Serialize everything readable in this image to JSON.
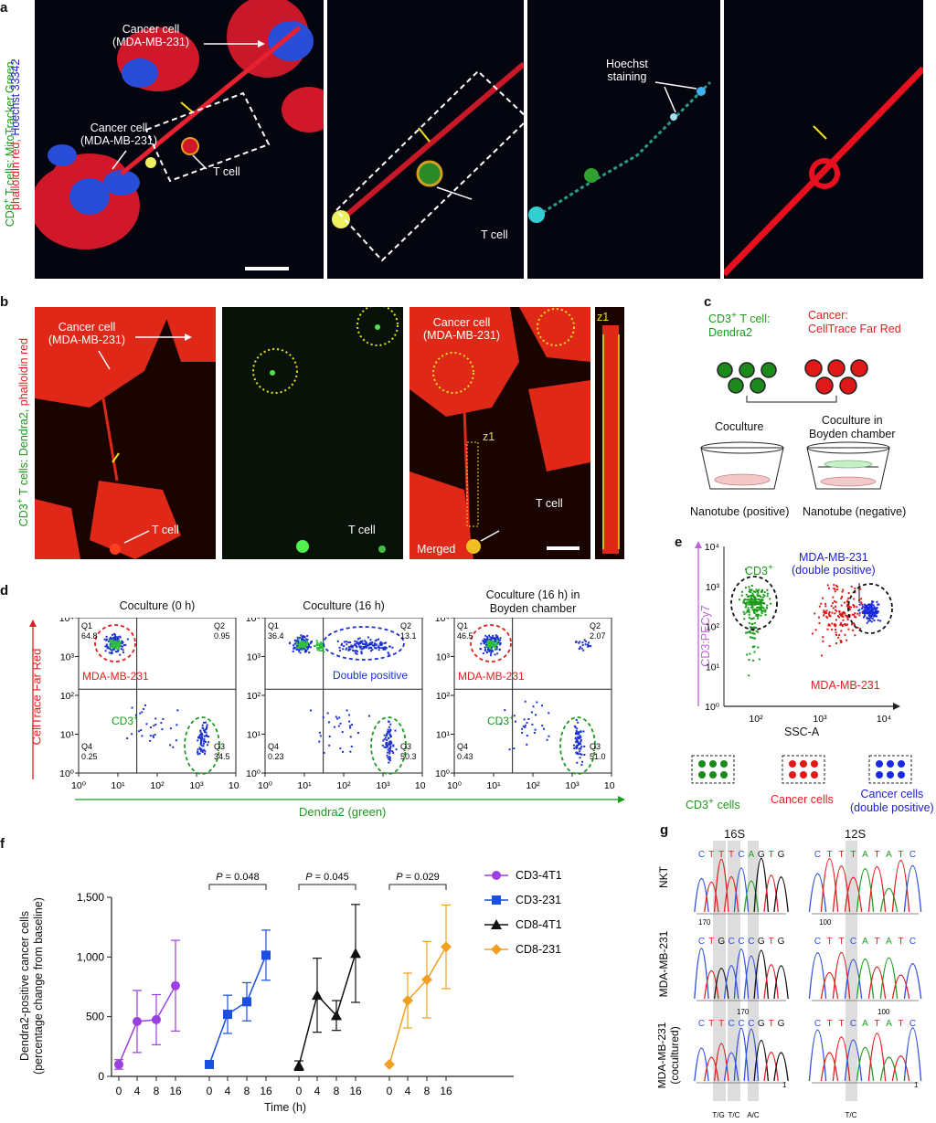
{
  "panel_labels": {
    "a": "a",
    "b": "b",
    "c": "c",
    "d": "d",
    "e": "e",
    "f": "f",
    "g": "g"
  },
  "panel_a": {
    "ylabel_green": "CD8",
    "ylabel_sup": "+",
    "ylabel_green2": " T cells: MitoTracker Green,",
    "ylabel_red": "phalloidin red,",
    "ylabel_blue": "Hoechst 33342",
    "cancer_cell_1": "Cancer cell",
    "cancer_cell_1b": "(MDA-MB-231)",
    "cancer_cell_2": "Cancer cell",
    "cancer_cell_2b": "(MDA-MB-231)",
    "t_cell_1": "T cell",
    "t_cell_2": "T cell",
    "hoechst_1": "Hoechst",
    "hoechst_2": "staining"
  },
  "panel_b": {
    "ylabel_green": "CD3",
    "ylabel_sup": "+",
    "ylabel_green2": " T cells: Dendra2,",
    "ylabel_red": " phalloidin red",
    "cancer_1": "Cancer cell",
    "cancer_1b": "(MDA-MB-231)",
    "t_cell_1": "T cell",
    "t_cell_2": "T cell",
    "cancer_3": "Cancer cell",
    "cancer_3b": "(MDA-MB-231)",
    "z1_a": "z1",
    "t_cell_3": "T cell",
    "merged": "Merged",
    "z1_b": "z1"
  },
  "panel_c": {
    "tcell_title": "CD3",
    "tcell_sup": "+",
    "tcell_title2": " T cell:",
    "tcell_sub": "Dendra2",
    "cancer_title": "Cancer:",
    "cancer_sub": "CellTrace Far Red",
    "coculture": "Coculture",
    "boyden_1": "Coculture in",
    "boyden_2": "Boyden chamber",
    "nano_pos": "Nanotube (positive)",
    "nano_neg": "Nanotube (negative)"
  },
  "panel_d": {
    "titles": [
      "Coculture (0 h)",
      "Coculture (16 h)",
      "Coculture (16 h) in"
    ],
    "title3b": "Boyden chamber",
    "ylabel": "CellTrace Far Red",
    "xlabel": "Dendra2 (green)",
    "xticks": [
      "10⁰",
      "10¹",
      "10²",
      "10³",
      "10⁴"
    ],
    "yticks": [
      "10⁰",
      "10¹",
      "10²",
      "10³",
      "10⁴"
    ],
    "quadrants": [
      {
        "q1": "Q1",
        "q1v": "64.8",
        "q2": "Q2",
        "q2v": "0.95",
        "q3": "Q3",
        "q3v": "34.5",
        "q4": "Q4",
        "q4v": "0.25"
      },
      {
        "q1": "Q1",
        "q1v": "36.4",
        "q2": "Q2",
        "q2v": "13.1",
        "q3": "Q3",
        "q3v": "50.3",
        "q4": "Q4",
        "q4v": "0.23"
      },
      {
        "q1": "Q1",
        "q1v": "46.5",
        "q2": "Q2",
        "q2v": "2.07",
        "q3": "Q3",
        "q3v": "51.0",
        "q4": "Q4",
        "q4v": "0.43"
      }
    ],
    "mda_label": "MDA-MB-231",
    "cd3_label": "CD3",
    "cd3_sup": "+",
    "double_positive": "Double positive"
  },
  "panel_e": {
    "ylabel": "CD3:PECy7",
    "xlabel": "SSC-A",
    "cd3_label": "CD3",
    "cd3_sup": "+",
    "mda_label_1": "MDA-MB-231",
    "mda_label_2": "(double positive)",
    "mda_red": "MDA-MB-231",
    "legend_cd3": "CD3",
    "legend_cd3_sup": "+",
    "legend_cd3_b": " cells",
    "legend_cancer": "Cancer cells",
    "legend_double_1": "Cancer cells",
    "legend_double_2": "(double positive)",
    "xticks": [
      "10²",
      "10³",
      "10⁴"
    ],
    "yticks": [
      "10⁰",
      "10¹",
      "10²",
      "10³",
      "10⁴"
    ]
  },
  "chart_data": {
    "type": "line",
    "ylabel": "Dendra2-positive cancer cells (percentage change from baseline)",
    "ylabel_1": "Dendra2-positive cancer cells",
    "ylabel_2": "(percentage change from baseline)",
    "xlabel": "Time (h)",
    "x": [
      0,
      4,
      8,
      16
    ],
    "ylim": [
      0,
      1500
    ],
    "yticks": [
      "0",
      "500",
      "1,000",
      "1,500"
    ],
    "series": [
      {
        "name": "CD3-4T1",
        "color": "#9b3fe0",
        "marker": "circle",
        "values": [
          100,
          460,
          475,
          760
        ],
        "err": [
          40,
          260,
          210,
          380
        ]
      },
      {
        "name": "CD3-231",
        "color": "#1a4fe0",
        "marker": "square",
        "values": [
          100,
          520,
          625,
          1015
        ],
        "err": [
          0,
          160,
          160,
          210
        ]
      },
      {
        "name": "CD8-4T1",
        "color": "#111111",
        "marker": "triangle",
        "values": [
          90,
          680,
          510,
          1030
        ],
        "err": [
          40,
          310,
          125,
          410
        ]
      },
      {
        "name": "CD8-231",
        "color": "#f0a020",
        "marker": "diamond",
        "values": [
          100,
          635,
          810,
          1085
        ],
        "err": [
          0,
          230,
          320,
          350
        ]
      }
    ],
    "pvalues": [
      {
        "text": "= 0.048",
        "prefix": "P"
      },
      {
        "text": "= 0.045",
        "prefix": "P"
      },
      {
        "text": "= 0.029",
        "prefix": "P"
      }
    ]
  },
  "panel_g": {
    "label_16s": "16S",
    "label_12s": "12S",
    "row_labels": [
      "NKT",
      "MDA-MB-231",
      "MDA-MB-231"
    ],
    "row3_sub": "(cocultured)",
    "seq_16s": [
      [
        "C",
        "T",
        "T",
        "T",
        "C",
        "A",
        "G",
        "T",
        "G"
      ],
      [
        "C",
        "T",
        "G",
        "C",
        "C",
        "C",
        "G",
        "T",
        "G"
      ],
      [
        "C",
        "T",
        "T",
        "C",
        "C",
        "C",
        "G",
        "T",
        "G"
      ]
    ],
    "seq_12s": [
      [
        "C",
        "T",
        "T",
        "T",
        "A",
        "T",
        "A",
        "T",
        "C"
      ],
      [
        "C",
        "T",
        "T",
        "C",
        "A",
        "T",
        "A",
        "T",
        "C"
      ],
      [
        "C",
        "T",
        "T",
        "C",
        "A",
        "T",
        "A",
        "T",
        "C"
      ]
    ],
    "pos_16s_1": "170",
    "pos_16s_2": "170",
    "pos_12s_1": "100",
    "pos_12s_2": "100",
    "pos_16s_3": "1",
    "pos_12s_3": "1",
    "bottom_16s": [
      "T/G",
      "T/C",
      "A/C"
    ],
    "bottom_12s": "T/C"
  }
}
